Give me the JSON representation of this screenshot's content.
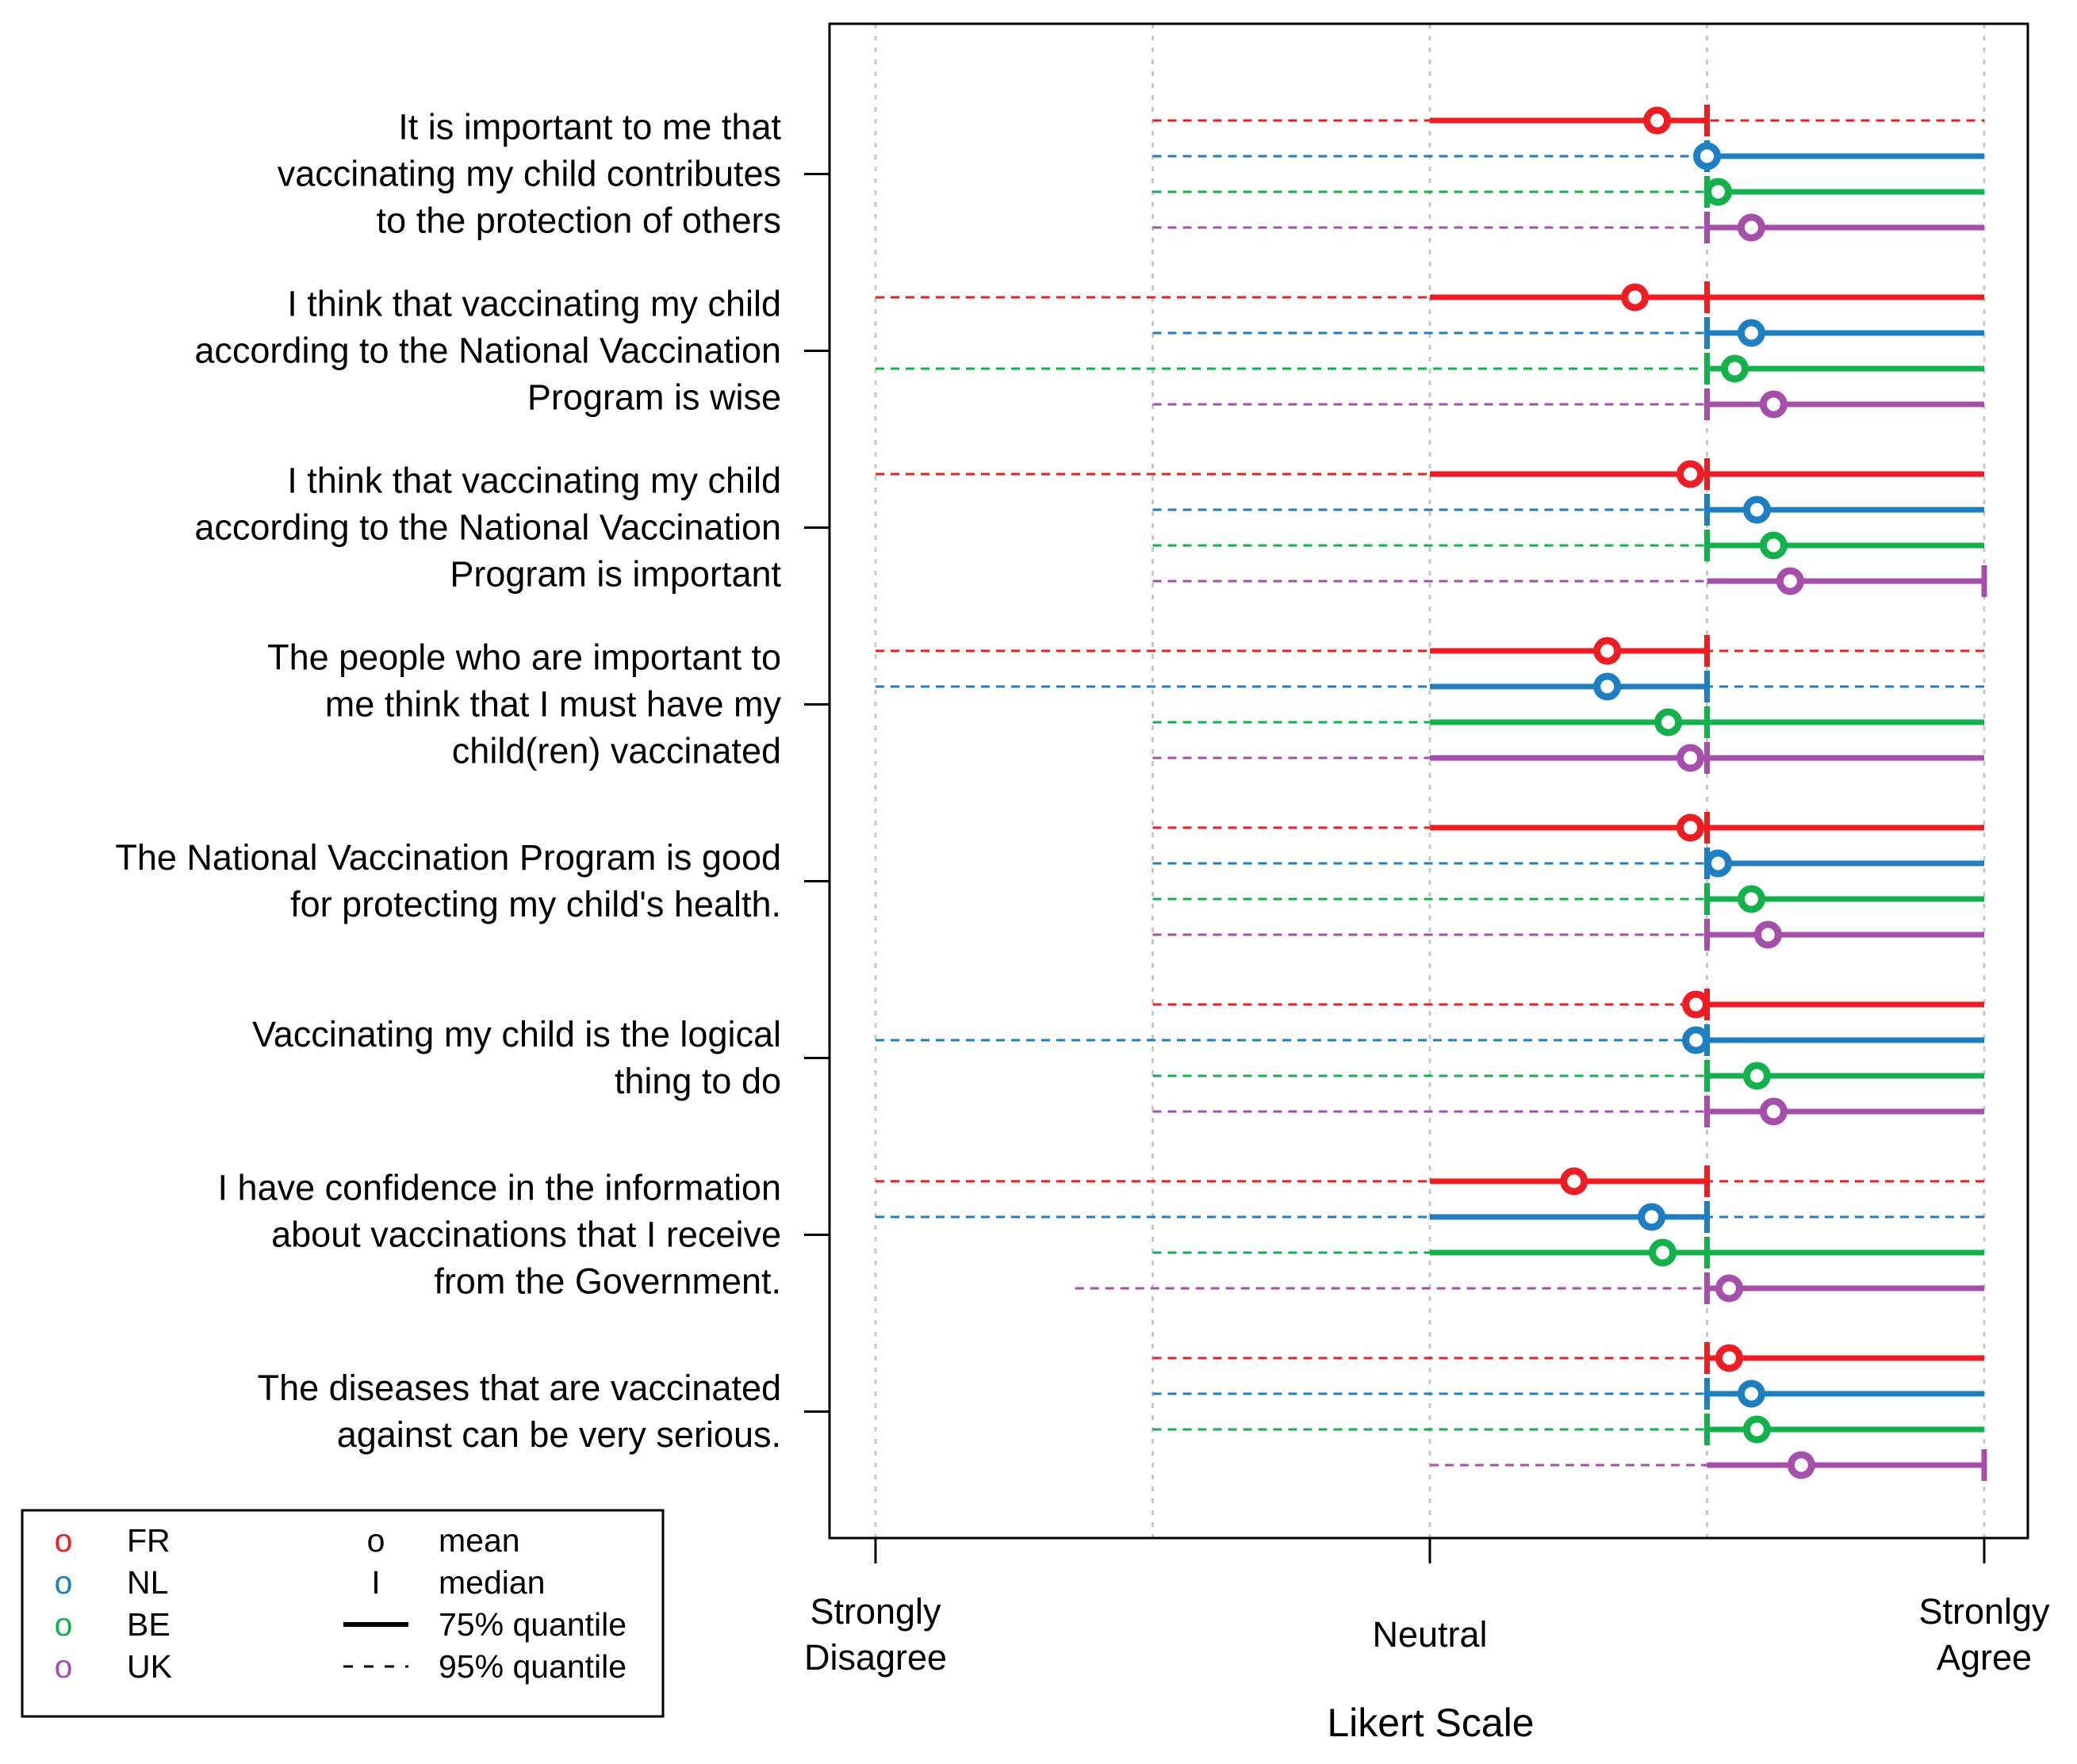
{
  "chart_data": {
    "type": "interval-dot",
    "xlabel": "Likert Scale",
    "xlim": [
      0.92,
      3.08
    ],
    "x_ticks": [
      {
        "value": 1,
        "lines": [
          "Strongly",
          "Disagree"
        ]
      },
      {
        "value": 2,
        "lines": [
          "Neutral"
        ]
      },
      {
        "value": 3,
        "lines": [
          "Stronlgy",
          "Agree"
        ]
      }
    ],
    "x_gridlines": [
      1,
      1.5,
      2,
      2.5,
      3
    ],
    "colors": {
      "FR": "#ee1d23",
      "NL": "#1d7fc1",
      "BE": "#13b14b",
      "UK": "#a54fab"
    },
    "series_order": [
      "FR",
      "NL",
      "BE",
      "UK"
    ],
    "statements": [
      {
        "lines": [
          "It is important to me that",
          "vaccinating my child contributes",
          "to the protection of others"
        ],
        "values": {
          "FR": {
            "mean": 2.41,
            "median": 2.5,
            "q75": [
              2.0,
              2.5
            ],
            "q95": [
              1.5,
              3.0
            ]
          },
          "NL": {
            "mean": 2.5,
            "median": 2.5,
            "q75": [
              2.5,
              3.0
            ],
            "q95": [
              1.5,
              2.5
            ]
          },
          "BE": {
            "mean": 2.52,
            "median": 2.5,
            "q75": [
              2.5,
              3.0
            ],
            "q95": [
              1.5,
              2.5
            ]
          },
          "UK": {
            "mean": 2.58,
            "median": 2.5,
            "q75": [
              2.5,
              3.0
            ],
            "q95": [
              1.5,
              2.5
            ]
          }
        }
      },
      {
        "lines": [
          "I think that vaccinating my child",
          "according to the National Vaccination",
          "Program is wise"
        ],
        "values": {
          "FR": {
            "mean": 2.37,
            "median": 2.5,
            "q75": [
              2.0,
              3.0
            ],
            "q95": [
              1.0,
              2.0
            ]
          },
          "NL": {
            "mean": 2.58,
            "median": 2.5,
            "q75": [
              2.5,
              3.0
            ],
            "q95": [
              1.5,
              2.5
            ]
          },
          "BE": {
            "mean": 2.55,
            "median": 2.5,
            "q75": [
              2.5,
              3.0
            ],
            "q95": [
              1.0,
              2.5
            ]
          },
          "UK": {
            "mean": 2.62,
            "median": 2.5,
            "q75": [
              2.5,
              3.0
            ],
            "q95": [
              1.5,
              2.5
            ]
          }
        }
      },
      {
        "lines": [
          "I think that vaccinating my child",
          "according to the National Vaccination",
          "Program is important"
        ],
        "values": {
          "FR": {
            "mean": 2.47,
            "median": 2.5,
            "q75": [
              2.0,
              3.0
            ],
            "q95": [
              1.0,
              2.0
            ]
          },
          "NL": {
            "mean": 2.59,
            "median": 2.5,
            "q75": [
              2.5,
              3.0
            ],
            "q95": [
              1.5,
              2.5
            ]
          },
          "BE": {
            "mean": 2.62,
            "median": 2.5,
            "q75": [
              2.5,
              3.0
            ],
            "q95": [
              1.5,
              2.5
            ]
          },
          "UK": {
            "mean": 2.65,
            "median": 3.0,
            "q75": [
              2.5,
              3.0
            ],
            "q95": [
              1.5,
              2.5
            ]
          }
        }
      },
      {
        "lines": [
          "The people who are important to",
          "me think that I must have my",
          "child(ren) vaccinated"
        ],
        "values": {
          "FR": {
            "mean": 2.32,
            "median": 2.5,
            "q75": [
              2.0,
              2.5
            ],
            "q95": [
              1.0,
              3.0
            ]
          },
          "NL": {
            "mean": 2.32,
            "median": 2.5,
            "q75": [
              2.0,
              2.5
            ],
            "q95": [
              1.0,
              3.0
            ]
          },
          "BE": {
            "mean": 2.43,
            "median": 2.5,
            "q75": [
              2.0,
              3.0
            ],
            "q95": [
              1.5,
              2.0
            ]
          },
          "UK": {
            "mean": 2.47,
            "median": 2.5,
            "q75": [
              2.0,
              3.0
            ],
            "q95": [
              1.5,
              2.0
            ]
          }
        }
      },
      {
        "lines": [
          "The National Vaccination Program is good",
          "for protecting my child's health."
        ],
        "values": {
          "FR": {
            "mean": 2.47,
            "median": 2.5,
            "q75": [
              2.0,
              3.0
            ],
            "q95": [
              1.5,
              2.0
            ]
          },
          "NL": {
            "mean": 2.52,
            "median": 2.5,
            "q75": [
              2.5,
              3.0
            ],
            "q95": [
              1.5,
              2.5
            ]
          },
          "BE": {
            "mean": 2.58,
            "median": 2.5,
            "q75": [
              2.5,
              3.0
            ],
            "q95": [
              1.5,
              2.5
            ]
          },
          "UK": {
            "mean": 2.61,
            "median": 2.5,
            "q75": [
              2.5,
              3.0
            ],
            "q95": [
              1.5,
              2.5
            ]
          }
        }
      },
      {
        "lines": [
          "Vaccinating my child is the logical",
          "thing to do"
        ],
        "values": {
          "FR": {
            "mean": 2.48,
            "median": 2.5,
            "q75": [
              2.5,
              3.0
            ],
            "q95": [
              1.5,
              2.5
            ]
          },
          "NL": {
            "mean": 2.48,
            "median": 2.5,
            "q75": [
              2.5,
              3.0
            ],
            "q95": [
              1.0,
              2.5
            ]
          },
          "BE": {
            "mean": 2.59,
            "median": 2.5,
            "q75": [
              2.5,
              3.0
            ],
            "q95": [
              1.5,
              2.5
            ]
          },
          "UK": {
            "mean": 2.62,
            "median": 2.5,
            "q75": [
              2.5,
              3.0
            ],
            "q95": [
              1.5,
              2.5
            ]
          }
        }
      },
      {
        "lines": [
          "I have confidence in the information",
          "about vaccinations that I receive",
          "from the Government."
        ],
        "values": {
          "FR": {
            "mean": 2.26,
            "median": 2.5,
            "q75": [
              2.0,
              2.5
            ],
            "q95": [
              1.0,
              3.0
            ]
          },
          "NL": {
            "mean": 2.4,
            "median": 2.5,
            "q75": [
              2.0,
              2.5
            ],
            "q95": [
              1.0,
              3.0
            ]
          },
          "BE": {
            "mean": 2.42,
            "median": 2.5,
            "q75": [
              2.0,
              3.0
            ],
            "q95": [
              1.5,
              2.0
            ]
          },
          "UK": {
            "mean": 2.54,
            "median": 2.5,
            "q75": [
              2.5,
              3.0
            ],
            "q95": [
              1.36,
              2.5
            ]
          }
        }
      },
      {
        "lines": [
          "The diseases that are vaccinated",
          "against can be very serious."
        ],
        "values": {
          "FR": {
            "mean": 2.54,
            "median": 2.5,
            "q75": [
              2.5,
              3.0
            ],
            "q95": [
              1.5,
              2.5
            ]
          },
          "NL": {
            "mean": 2.58,
            "median": 2.5,
            "q75": [
              2.5,
              3.0
            ],
            "q95": [
              1.5,
              2.5
            ]
          },
          "BE": {
            "mean": 2.59,
            "median": 2.5,
            "q75": [
              2.5,
              3.0
            ],
            "q95": [
              1.5,
              2.5
            ]
          },
          "UK": {
            "mean": 2.67,
            "median": 3.0,
            "q75": [
              2.5,
              3.0
            ],
            "q95": [
              2.0,
              2.5
            ]
          }
        }
      }
    ],
    "legend": {
      "position": "bottom-left",
      "series_symbol": "o",
      "series": [
        "FR",
        "NL",
        "BE",
        "UK"
      ],
      "symbols": [
        {
          "glyph": "o",
          "label": "mean"
        },
        {
          "glyph": "I",
          "label": "median"
        },
        {
          "glyph": "solid-line",
          "label": "75% quantile"
        },
        {
          "glyph": "dashed-line",
          "label": "95% quantile"
        }
      ]
    }
  }
}
